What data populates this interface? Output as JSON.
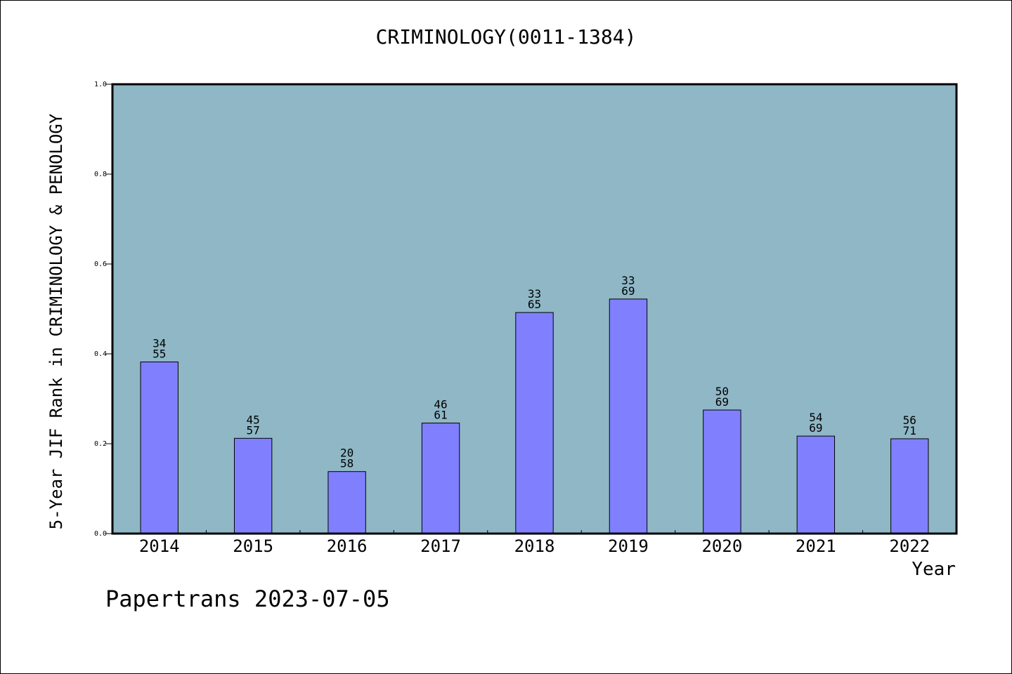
{
  "chart_data": {
    "type": "bar",
    "title": "CRIMINOLOGY(0011-1384)",
    "xlabel": "Year",
    "ylabel": "5-Year JIF Rank in CRIMINOLOGY & PENOLOGY",
    "ylim": [
      0,
      1
    ],
    "yticks": [
      "0.0",
      "0.2",
      "0.4",
      "0.6",
      "0.8",
      "1.0"
    ],
    "categories": [
      "2014",
      "2015",
      "2016",
      "2017",
      "2018",
      "2019",
      "2020",
      "2021",
      "2022"
    ],
    "values": [
      0.382,
      0.212,
      0.138,
      0.246,
      0.492,
      0.522,
      0.275,
      0.217,
      0.211
    ],
    "labels": [
      {
        "rank": "34",
        "total": "55"
      },
      {
        "rank": "45",
        "total": "57"
      },
      {
        "rank": "20",
        "total": "58"
      },
      {
        "rank": "46",
        "total": "61"
      },
      {
        "rank": "33",
        "total": "65"
      },
      {
        "rank": "33",
        "total": "69"
      },
      {
        "rank": "50",
        "total": "69"
      },
      {
        "rank": "54",
        "total": "69"
      },
      {
        "rank": "56",
        "total": "71"
      }
    ],
    "grid": false,
    "colors": {
      "plot_background": "#8fb7c6",
      "bar_fill": "#8080ff",
      "bar_stroke": "#000000"
    }
  },
  "footer": "Papertrans 2023-07-05"
}
